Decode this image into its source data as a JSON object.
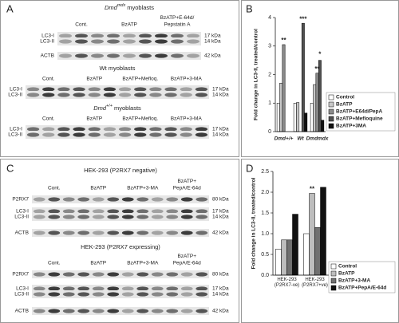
{
  "panels": [
    {
      "label": "A",
      "blots": [
        {
          "title": "Dmd",
          "title_sup": "mdx",
          "title_rest": "myoblasts",
          "columns": [
            [
              "Cont."
            ],
            [
              "BzATP"
            ],
            [
              "BzATP+E-64d/",
              "Pepstatin A"
            ]
          ],
          "rows": [
            "LC3-I",
            "LC3-II",
            "ACTB"
          ],
          "markers": [
            "17 kDa",
            "14 kDa",
            "42 kDa"
          ]
        },
        {
          "title": "Wt myoblasts",
          "columns": [
            [
              "Cont."
            ],
            [
              "BzATP"
            ],
            [
              "BzATP+Mefloq."
            ],
            [
              "BzATP+3-MA"
            ]
          ],
          "rows": [
            "LC3-I",
            "LC3-II"
          ],
          "markers": [
            "17 kDa",
            "14 kDa"
          ]
        },
        {
          "title": "Dmd",
          "title_sup": "+/+",
          "title_rest": "myoblasts",
          "columns": [
            [
              "Cont."
            ],
            [
              "BzATP"
            ],
            [
              "BzATP+Mefloq."
            ],
            [
              "BzATP+3-MA"
            ]
          ],
          "rows": [
            "LC3-I",
            "LC3-II"
          ],
          "markers": [
            "17 kDa",
            "14 kDa"
          ]
        }
      ]
    },
    {
      "label": "C",
      "blots": [
        {
          "title": "HEK-293 (P2RX7 negative)",
          "columns": [
            [
              "Cont."
            ],
            [
              "BzATP"
            ],
            [
              "BzATP+3-MA"
            ],
            [
              "BzATP+",
              "PepA/E-64d"
            ]
          ],
          "rows": [
            "P2RX7",
            "LC3-I",
            "LC3-II",
            "ACTB"
          ],
          "markers": [
            "80 kDa",
            "17 kDa",
            "14 kDa",
            "42 kDa"
          ]
        },
        {
          "title": "HEK-293 (P2RX7 expressing)",
          "columns": [
            [
              "Cont."
            ],
            [
              "BzATP"
            ],
            [
              "BzATP+3-MA"
            ],
            [
              "BzATP+",
              "PepA/E-64d"
            ]
          ],
          "rows": [
            "P2RX7",
            "LC3-I",
            "LC3-II",
            "ACTB"
          ],
          "markers": [
            "80 kDa",
            "17 kDa",
            "14 kDa",
            "42 kDa"
          ]
        }
      ]
    }
  ],
  "chart_data": [
    {
      "type": "bar",
      "panel_label": "B",
      "y_label": "Fold change in LC3-II, treated/control",
      "categories": [
        "Dmd+/+",
        "Wt",
        "Dmdmdx"
      ],
      "series": [
        {
          "name": "Control",
          "color": "#ffffff",
          "values": [
            1,
            1,
            1
          ]
        },
        {
          "name": "BzATP",
          "color": "#c8c8c8",
          "values": [
            1.7,
            1.02,
            1.65
          ]
        },
        {
          "name": "BzATP+E64d/PepA",
          "color": "#8c8c8c",
          "values": [
            3.05,
            null,
            2.05
          ]
        },
        {
          "name": "BzATP+Mefloquine",
          "color": "#505050",
          "values": [
            null,
            3.8,
            2.5
          ]
        },
        {
          "name": "BzATP+3MA",
          "color": "#111111",
          "values": [
            null,
            0.65,
            0.4
          ]
        }
      ],
      "ylim": [
        0,
        4
      ],
      "yticks": [
        0,
        1,
        2,
        3,
        4
      ],
      "annotations": [
        "**",
        "***",
        "**",
        "*"
      ]
    },
    {
      "type": "bar",
      "panel_label": "D",
      "y_label": "Fold change in LC3-II, treated/control",
      "categories": [
        "HEK-293 (P2RX7-ve)",
        "HEK-293 (P2RX7+ve)"
      ],
      "series": [
        {
          "name": "Control",
          "color": "#ffffff",
          "values": [
            0.63,
            1.0
          ]
        },
        {
          "name": "BzATP",
          "color": "#bdbdbd",
          "values": [
            0.85,
            1.97
          ]
        },
        {
          "name": "BzATP+3-MA",
          "color": "#707070",
          "values": [
            0.85,
            1.15
          ]
        },
        {
          "name": "BzATP+PepA/E-64d",
          "color": "#111111",
          "values": [
            1.47,
            2.12
          ]
        }
      ],
      "ylim": [
        0,
        2.5
      ],
      "yticks": [
        {
          "value": 0,
          "label": "0.0"
        },
        {
          "value": 0.5,
          "label": "0.5"
        },
        {
          "value": 1,
          "label": "1.0"
        },
        {
          "value": 1.5,
          "label": "1.5"
        },
        {
          "value": 2,
          "label": "2.0"
        },
        {
          "value": 2.5,
          "label": "2.5"
        }
      ],
      "annotations": [
        "**"
      ]
    }
  ]
}
